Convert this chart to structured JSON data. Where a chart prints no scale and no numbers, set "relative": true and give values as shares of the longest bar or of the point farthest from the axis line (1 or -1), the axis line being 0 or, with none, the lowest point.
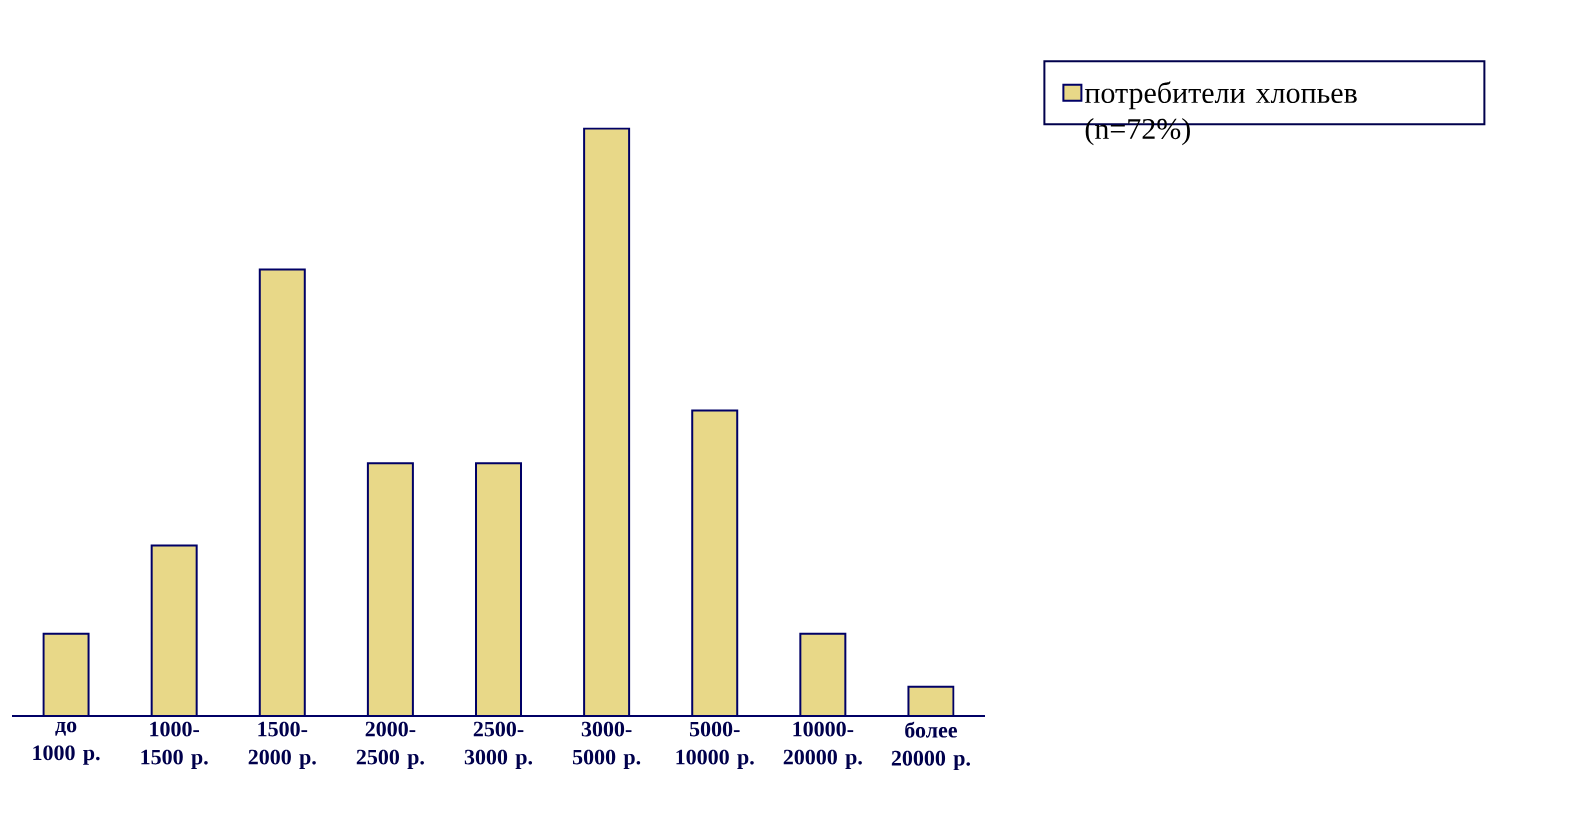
{
  "chart_data": {
    "type": "bar",
    "relative": true,
    "categories": [
      "до 1000 р.",
      "1000-1500 р.",
      "1500-2000 р.",
      "2000-2500 р.",
      "2500-3000 р.",
      "3000-5000 р.",
      "5000-10000 р.",
      "10000-20000 р.",
      "более 20000 р."
    ],
    "series": [
      {
        "name": "потребители хлопьев (n=72%)",
        "color": "#e8d888",
        "values": [
          0.14,
          0.29,
          0.76,
          0.43,
          0.43,
          1,
          0.52,
          0.14,
          0.05
        ]
      }
    ],
    "legend": "right"
  }
}
